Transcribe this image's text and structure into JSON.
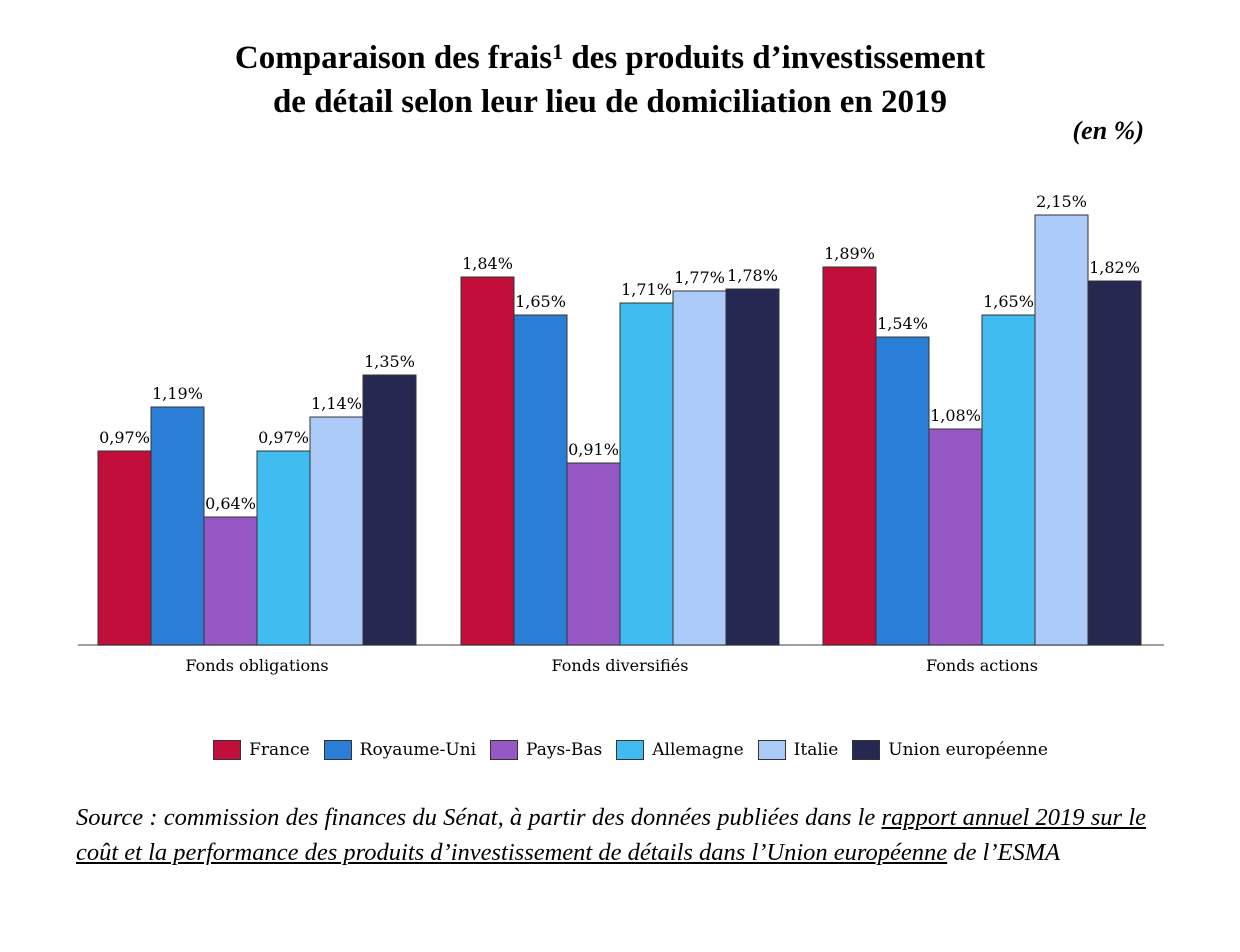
{
  "title": {
    "line1_a": "Comparaison des frais",
    "footnote": "1",
    "line1_b": " des produits d’investissement",
    "line2": "de détail selon leur lieu de domiciliation en 2019"
  },
  "unit_label": "(en %)",
  "chart_data": {
    "type": "bar",
    "title": "Comparaison des frais1 des produits d’investissement de détail selon leur lieu de domiciliation en 2019",
    "categories": [
      "Fonds obligations",
      "Fonds diversifiés",
      "Fonds actions"
    ],
    "series": [
      {
        "name": "France",
        "color": "#c20e3a",
        "values": [
          0.97,
          1.84,
          1.89
        ],
        "labels": [
          "0,97%",
          "1,84%",
          "1,89%"
        ]
      },
      {
        "name": "Royaume-Uni",
        "color": "#2b7ed6",
        "values": [
          1.19,
          1.65,
          1.54
        ],
        "labels": [
          "1,19%",
          "1,65%",
          "1,54%"
        ]
      },
      {
        "name": "Pays-Bas",
        "color": "#9558c4",
        "values": [
          0.64,
          0.91,
          1.08
        ],
        "labels": [
          "0,64%",
          "0,91%",
          "1,08%"
        ]
      },
      {
        "name": "Allemagne",
        "color": "#40bcf0",
        "values": [
          0.97,
          1.71,
          1.65
        ],
        "labels": [
          "0,97%",
          "1,71%",
          "1,65%"
        ]
      },
      {
        "name": "Italie",
        "color": "#adcbf8",
        "values": [
          1.14,
          1.77,
          2.15
        ],
        "labels": [
          "1,14%",
          "1,77%",
          "2,15%"
        ]
      },
      {
        "name": "Union européenne",
        "color": "#252850",
        "values": [
          1.35,
          1.78,
          1.82
        ],
        "labels": [
          "1,35%",
          "1,78%",
          "1,82%"
        ]
      }
    ],
    "ylim": [
      0,
      2.3
    ],
    "grid": false,
    "legend": "bottom",
    "ylabel": "",
    "xlabel": ""
  },
  "source": {
    "prefix": "Source : commission des finances du Sénat, à partir des données publiées dans le ",
    "link": "rapport annuel 2019 sur le coût et la performance des produits d’investissement de détails dans l’Union européenne",
    "suffix": " de l’ESMA"
  }
}
